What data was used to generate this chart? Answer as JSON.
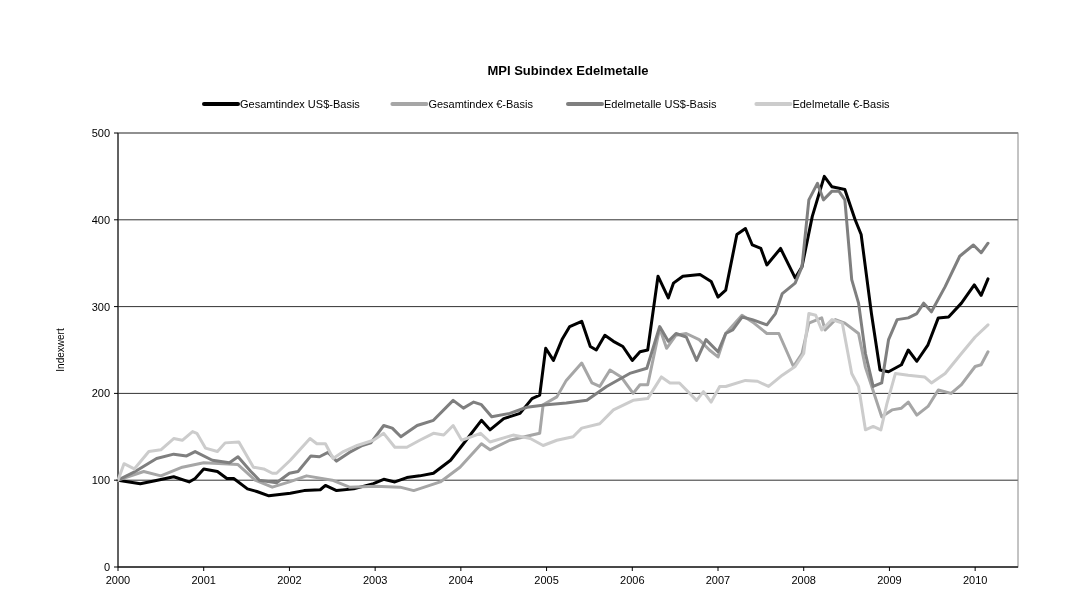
{
  "chart_data": {
    "type": "line",
    "title": "MPI Subindex Edelmetalle",
    "ylabel": "Indexwert",
    "xlim": [
      2000,
      2010.5
    ],
    "xticks": [
      2000,
      2001,
      2002,
      2003,
      2004,
      2005,
      2006,
      2007,
      2008,
      2009,
      2010
    ],
    "ylim": [
      0,
      500
    ],
    "yticks": [
      0,
      100,
      200,
      300,
      400,
      500
    ],
    "grid": "y",
    "legend": "top",
    "marker": "none",
    "line_style": "solid",
    "series": [
      {
        "name": "Gesamtindex US$-Basis",
        "color": "#000000",
        "x": [
          2000,
          2000.26,
          2000.46,
          2000.65,
          2000.83,
          2000.9,
          2001.0,
          2001.16,
          2001.27,
          2001.35,
          2001.51,
          2001.62,
          2001.76,
          2002.01,
          2002.17,
          2002.36,
          2002.42,
          2002.55,
          2002.75,
          2002.98,
          2003.1,
          2003.23,
          2003.37,
          2003.52,
          2003.68,
          2003.88,
          2004.03,
          2004.24,
          2004.34,
          2004.5,
          2004.69,
          2004.83,
          2004.92,
          2004.99,
          2005.08,
          2005.18,
          2005.27,
          2005.41,
          2005.51,
          2005.58,
          2005.68,
          2005.78,
          2005.89,
          2006.0,
          2006.09,
          2006.18,
          2006.3,
          2006.42,
          2006.48,
          2006.59,
          2006.79,
          2006.92,
          2007.0,
          2007.09,
          2007.22,
          2007.32,
          2007.4,
          2007.5,
          2007.57,
          2007.73,
          2007.9,
          2007.98,
          2008.1,
          2008.24,
          2008.33,
          2008.48,
          2008.6,
          2008.67,
          2008.79,
          2008.89,
          2008.99,
          2009.14,
          2009.22,
          2009.32,
          2009.45,
          2009.57,
          2009.69,
          2009.84,
          2009.99,
          2010.07,
          2010.15
        ],
        "values": [
          100,
          96,
          100,
          104,
          98,
          102,
          113,
          110,
          102,
          102,
          90,
          87,
          82,
          85,
          88,
          89,
          94,
          88,
          90,
          96,
          101,
          98,
          103,
          105,
          108,
          123,
          142,
          169,
          158,
          171,
          177,
          194,
          198,
          252,
          238,
          262,
          277,
          283,
          254,
          250,
          267,
          260,
          254,
          238,
          248,
          250,
          335,
          310,
          327,
          335,
          337,
          329,
          311,
          319,
          383,
          390,
          371,
          367,
          348,
          367,
          333,
          346,
          404,
          450,
          438,
          435,
          400,
          383,
          292,
          227,
          225,
          233,
          250,
          237,
          256,
          287,
          288,
          304,
          325,
          313,
          332
        ]
      },
      {
        "name": "Gesamtindex €-Basis",
        "color": "#a6a6a6",
        "x": [
          2000,
          2000.3,
          2000.5,
          2000.75,
          2001.0,
          2001.4,
          2001.6,
          2001.8,
          2002.0,
          2002.2,
          2002.5,
          2002.7,
          2003.0,
          2003.29,
          2003.45,
          2003.76,
          2003.99,
          2004.24,
          2004.34,
          2004.57,
          2004.83,
          2004.92,
          2004.96,
          2005.12,
          2005.23,
          2005.41,
          2005.53,
          2005.62,
          2005.74,
          2005.87,
          2006.01,
          2006.09,
          2006.18,
          2006.32,
          2006.4,
          2006.51,
          2006.63,
          2006.78,
          2006.9,
          2007.0,
          2007.09,
          2007.28,
          2007.42,
          2007.57,
          2007.71,
          2007.88,
          2007.98,
          2008.06,
          2008.21,
          2008.25,
          2008.37,
          2008.48,
          2008.64,
          2008.72,
          2008.91,
          2009.03,
          2009.14,
          2009.22,
          2009.32,
          2009.45,
          2009.57,
          2009.72,
          2009.84,
          2010.0,
          2010.07,
          2010.15
        ],
        "values": [
          100,
          110,
          105,
          115,
          120,
          118,
          100,
          92,
          98,
          105,
          100,
          92,
          93,
          92,
          88,
          98,
          115,
          142,
          135,
          146,
          152,
          154,
          187,
          196,
          215,
          235,
          212,
          208,
          227,
          219,
          200,
          210,
          210,
          275,
          252,
          267,
          269,
          262,
          250,
          242,
          269,
          290,
          281,
          269,
          269,
          231,
          246,
          281,
          287,
          273,
          285,
          281,
          269,
          230,
          173,
          181,
          183,
          190,
          175,
          185,
          204,
          200,
          210,
          231,
          233,
          248
        ]
      },
      {
        "name": "Edelmetalle US$-Basis",
        "color": "#7f7f7f",
        "x": [
          2000,
          2000.2,
          2000.45,
          2000.65,
          2000.8,
          2000.9,
          2001.1,
          2001.3,
          2001.4,
          2001.55,
          2001.65,
          2001.85,
          2002.0,
          2002.1,
          2002.25,
          2002.35,
          2002.45,
          2002.55,
          2002.7,
          2002.85,
          2002.95,
          2003.1,
          2003.2,
          2003.3,
          2003.49,
          2003.68,
          2003.91,
          2004.03,
          2004.15,
          2004.24,
          2004.36,
          2004.57,
          2004.77,
          2005.0,
          2005.23,
          2005.47,
          2005.7,
          2005.97,
          2006.17,
          2006.32,
          2006.42,
          2006.51,
          2006.63,
          2006.75,
          2006.86,
          2007.0,
          2007.09,
          2007.17,
          2007.28,
          2007.4,
          2007.57,
          2007.67,
          2007.75,
          2007.9,
          2007.98,
          2008.06,
          2008.16,
          2008.23,
          2008.33,
          2008.41,
          2008.48,
          2008.56,
          2008.64,
          2008.72,
          2008.81,
          2008.91,
          2008.99,
          2009.09,
          2009.22,
          2009.32,
          2009.4,
          2009.49,
          2009.65,
          2009.82,
          2009.98,
          2010.07,
          2010.15
        ],
        "values": [
          100,
          110,
          125,
          130,
          128,
          133,
          123,
          120,
          127,
          110,
          100,
          97,
          108,
          110,
          128,
          127,
          132,
          122,
          132,
          140,
          143,
          163,
          160,
          150,
          163,
          169,
          192,
          183,
          190,
          187,
          173,
          177,
          184,
          187,
          189,
          192,
          208,
          223,
          229,
          277,
          260,
          269,
          265,
          238,
          262,
          248,
          269,
          273,
          288,
          285,
          279,
          292,
          315,
          327,
          346,
          423,
          442,
          423,
          433,
          433,
          423,
          331,
          304,
          246,
          208,
          212,
          262,
          285,
          287,
          292,
          304,
          294,
          323,
          358,
          371,
          362,
          373
        ]
      },
      {
        "name": "Edelmetalle €-Basis",
        "color": "#cccccc",
        "x": [
          2000,
          2000.07,
          2000.19,
          2000.36,
          2000.5,
          2000.65,
          2000.75,
          2000.87,
          2000.92,
          2001.02,
          2001.16,
          2001.25,
          2001.41,
          2001.58,
          2001.7,
          2001.8,
          2001.85,
          2002.01,
          2002.24,
          2002.32,
          2002.42,
          2002.51,
          2002.63,
          2002.79,
          2002.98,
          2003.1,
          2003.23,
          2003.37,
          2003.52,
          2003.68,
          2003.8,
          2003.91,
          2004.01,
          2004.23,
          2004.34,
          2004.61,
          2004.81,
          2004.96,
          2005.12,
          2005.31,
          2005.41,
          2005.62,
          2005.78,
          2006.01,
          2006.18,
          2006.34,
          2006.44,
          2006.55,
          2006.75,
          2006.83,
          2006.92,
          2007.02,
          2007.09,
          2007.32,
          2007.46,
          2007.59,
          2007.75,
          2007.9,
          2008.0,
          2008.06,
          2008.14,
          2008.21,
          2008.33,
          2008.45,
          2008.56,
          2008.64,
          2008.72,
          2008.81,
          2008.9,
          2008.97,
          2009.07,
          2009.22,
          2009.41,
          2009.49,
          2009.65,
          2009.84,
          2010.0,
          2010.15
        ],
        "values": [
          100,
          119,
          113,
          133,
          135,
          148,
          146,
          156,
          154,
          137,
          133,
          143,
          144,
          115,
          113,
          108,
          108,
          123,
          148,
          142,
          142,
          125,
          133,
          140,
          146,
          154,
          138,
          138,
          146,
          154,
          152,
          163,
          146,
          154,
          144,
          152,
          148,
          140,
          146,
          150,
          160,
          165,
          181,
          192,
          194,
          219,
          212,
          212,
          192,
          202,
          190,
          208,
          208,
          215,
          214,
          208,
          221,
          231,
          246,
          292,
          290,
          273,
          285,
          281,
          223,
          208,
          158,
          162,
          158,
          188,
          223,
          221,
          219,
          212,
          223,
          246,
          265,
          279
        ]
      }
    ]
  }
}
